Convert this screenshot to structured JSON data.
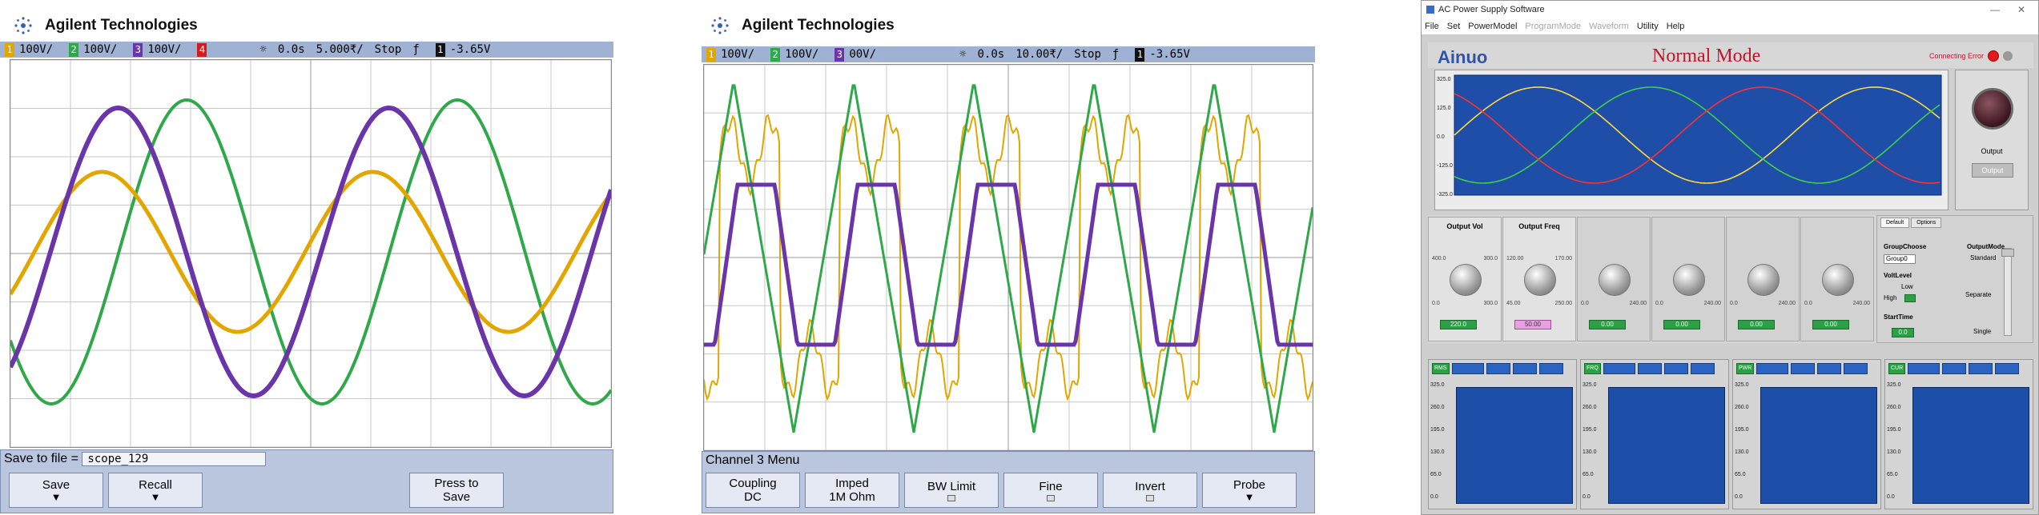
{
  "scope1": {
    "brand": "Agilent Technologies",
    "status": {
      "ch1": "100V/",
      "ch2": "100V/",
      "ch3": "100V/",
      "time_pos": "0.0s",
      "time_div": "5.000₹/",
      "run": "Stop",
      "trig_level": "-3.65V"
    },
    "save_label": "Save to file =",
    "filename": "scope_129",
    "softkeys": {
      "save": "Save",
      "recall": "Recall",
      "press_line1": "Press to",
      "press_line2": "Save"
    }
  },
  "scope2": {
    "brand": "Agilent Technologies",
    "status": {
      "ch1": "100V/",
      "ch2": "100V/",
      "ch3": "00V/",
      "time_pos": "0.0s",
      "time_div": "10.00₹/",
      "run": "Stop",
      "trig_level": "-3.65V"
    },
    "menu_title": "Channel 3 Menu",
    "softkeys": {
      "coupling_l1": "Coupling",
      "coupling_l2": "DC",
      "imped_l1": "Imped",
      "imped_l2": "1M Ohm",
      "bw": "BW Limit",
      "fine": "Fine",
      "invert": "Invert",
      "probe": "Probe"
    }
  },
  "app": {
    "title": "AC Power Supply Software",
    "menu": [
      "File",
      "Set",
      "PowerModel",
      "ProgramMode",
      "Waveform",
      "Utility",
      "Help"
    ],
    "brand": "Ainuo",
    "mode": "Normal Mode",
    "connect_label": "Connecting Error",
    "wave_ylabels": [
      "325.0",
      "125.0",
      "0.0",
      "-125.0",
      "-325.0"
    ],
    "output_label": "Output",
    "output_button": "Output",
    "controls": [
      {
        "label": "Output Vol",
        "min": "0.0",
        "max": "300.0",
        "r1": "400.0",
        "r2": "300.0",
        "value": "220.0"
      },
      {
        "label": "Output Freq",
        "min": "45.00",
        "max": "250.00",
        "r1": "120.00",
        "r2": "170.00",
        "value": "50.00"
      },
      {
        "label": "",
        "min": "0.0",
        "max": "240.00",
        "r1": "",
        "r2": "",
        "value": "0.00"
      },
      {
        "label": "",
        "min": "0.0",
        "max": "240.00",
        "r1": "",
        "r2": "",
        "value": "0.00"
      },
      {
        "label": "",
        "min": "0.0",
        "max": "240.00",
        "r1": "",
        "r2": "",
        "value": "0.00"
      },
      {
        "label": "",
        "min": "0.0",
        "max": "240.00",
        "r1": "",
        "r2": "",
        "value": "0.00"
      }
    ],
    "group": {
      "tab1": "Default",
      "tab2": "Options",
      "group_choose": "GroupChoose",
      "group_value": "Group0",
      "volt_level": "VoltLevel",
      "low": "Low",
      "high": "High",
      "start_time": "StartTime",
      "start_value": "0.0",
      "output_mode": "OutputMode",
      "standard": "Standard",
      "separate": "Separate",
      "single": "Single"
    },
    "meters": [
      {
        "tag": "RMS",
        "ylabels": [
          "325.0",
          "260.0",
          "195.0",
          "130.0",
          "65.0",
          "0.0"
        ]
      },
      {
        "tag": "FRQ",
        "ylabels": [
          "325.0",
          "260.0",
          "195.0",
          "130.0",
          "65.0",
          "0.0"
        ]
      },
      {
        "tag": "PWR",
        "ylabels": [
          "325.0",
          "260.0",
          "195.0",
          "130.0",
          "65.0",
          "0.0"
        ]
      },
      {
        "tag": "CUR",
        "ylabels": [
          "325.0",
          "260.0",
          "195.0",
          "130.0",
          "65.0",
          "0.0"
        ]
      }
    ]
  },
  "colors": {
    "ch1": "#e3a600",
    "ch2": "#2fa84a",
    "ch3": "#6a35a8",
    "ch4": "#d01c1c",
    "bar": "#9fb2d4"
  }
}
